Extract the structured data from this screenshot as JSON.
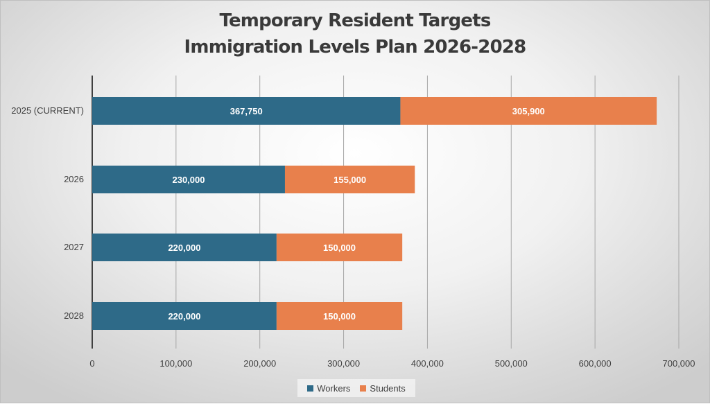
{
  "chart_data": {
    "type": "bar",
    "orientation": "horizontal",
    "stacked": true,
    "title": [
      "Temporary Resident Targets",
      "Immigration Levels Plan 2026-2028"
    ],
    "categories": [
      "2025 (CURRENT)",
      "2026",
      "2027",
      "2028"
    ],
    "series": [
      {
        "name": "Workers",
        "color": "#2e6a88",
        "values": [
          367750,
          230000,
          220000,
          220000
        ],
        "labels": [
          "367,750",
          "230,000",
          "220,000",
          "220,000"
        ]
      },
      {
        "name": "Students",
        "color": "#e8804c",
        "values": [
          305900,
          155000,
          150000,
          150000
        ],
        "labels": [
          "305,900",
          "155,000",
          "150,000",
          "150,000"
        ]
      }
    ],
    "xlim": [
      0,
      700000
    ],
    "x_ticks": [
      0,
      100000,
      200000,
      300000,
      400000,
      500000,
      600000,
      700000
    ],
    "x_tick_labels": [
      "0",
      "100,000",
      "200,000",
      "300,000",
      "400,000",
      "500,000",
      "600,000",
      "700,000"
    ],
    "grid": "vertical",
    "legend": "bottom"
  }
}
